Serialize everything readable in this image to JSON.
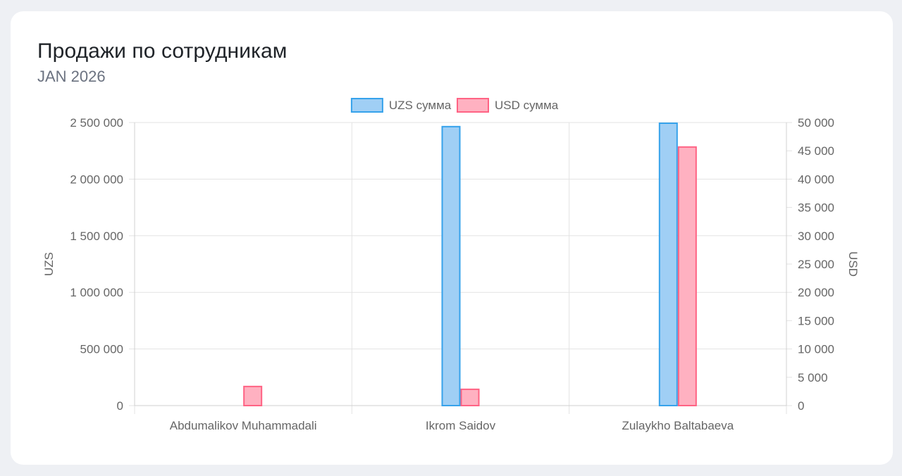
{
  "card": {
    "title": "Продажи по сотрудникам",
    "subtitle": "JAN 2026"
  },
  "chart_data": {
    "type": "bar",
    "categories": [
      "Abdumalikov Muhammadali",
      "Ikrom Saidov",
      "Zulaykho Baltabaeva"
    ],
    "series": [
      {
        "name": "UZS сумма",
        "axis": "left",
        "values": [
          0,
          2470000,
          2500000
        ],
        "fill": "#a0cff5",
        "stroke": "#36a2eb"
      },
      {
        "name": "USD сумма",
        "axis": "right",
        "values": [
          3500,
          3000,
          45800
        ],
        "fill": "#ffb1c1",
        "stroke": "#ff6384"
      }
    ],
    "ylabel": "UZS",
    "y2label": "USD",
    "ylim": [
      0,
      2500000
    ],
    "y2lim": [
      0,
      50000
    ],
    "yticks": [
      "0",
      "500 000",
      "1 000 000",
      "1 500 000",
      "2 000 000",
      "2 500 000"
    ],
    "y2ticks": [
      "0",
      "5 000",
      "10 000",
      "15 000",
      "20 000",
      "25 000",
      "30 000",
      "35 000",
      "40 000",
      "45 000",
      "50 000"
    ],
    "legend": "top-center",
    "grid": true
  }
}
